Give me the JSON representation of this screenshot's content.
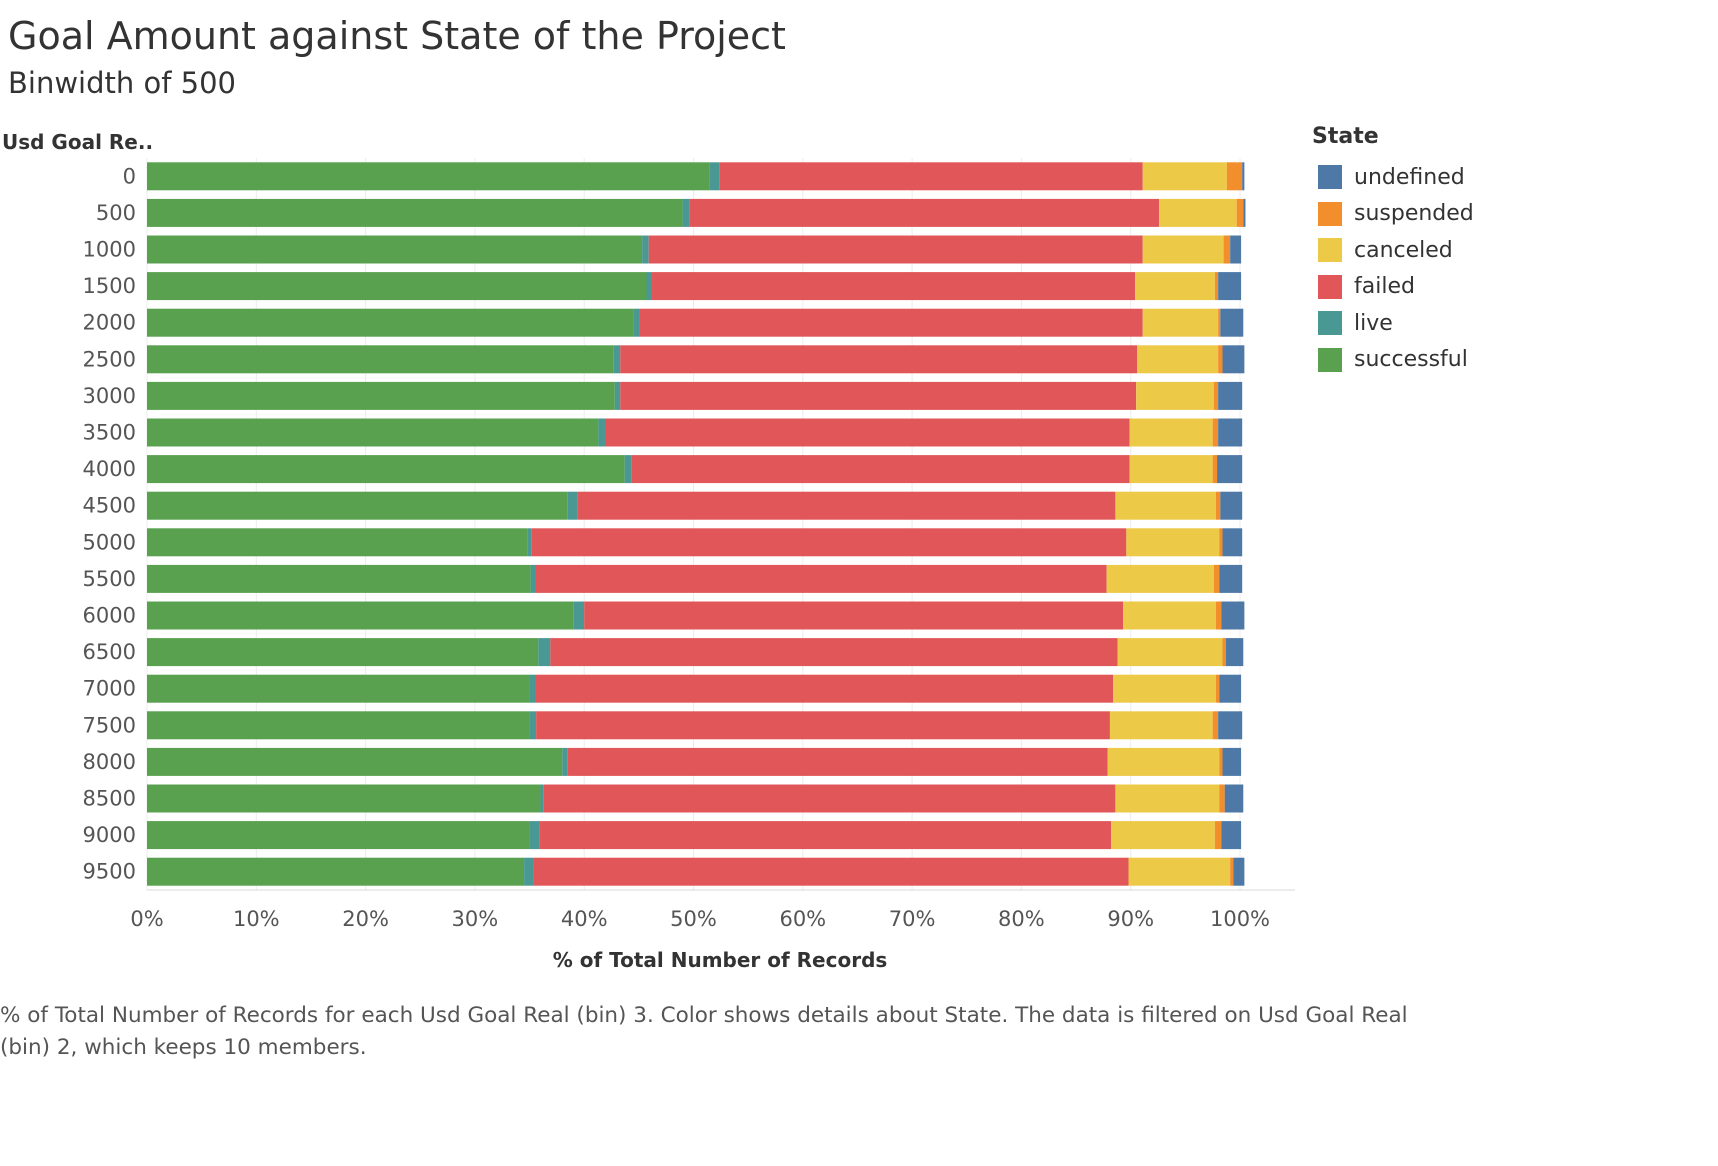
{
  "title": "Goal Amount against State of the Project",
  "subtitle": "Binwidth of 500",
  "caption": "% of Total Number of Records for each Usd Goal Real (bin) 3.  Color shows details about State. The data is filtered on Usd Goal Real (bin) 2, which keeps 10 members.",
  "legend": {
    "title": "State",
    "items": [
      {
        "label": "undefined",
        "color": "#4e79a7"
      },
      {
        "label": "suspended",
        "color": "#f28e2b"
      },
      {
        "label": "canceled",
        "color": "#edc948"
      },
      {
        "label": "failed",
        "color": "#e15759"
      },
      {
        "label": "live",
        "color": "#499894"
      },
      {
        "label": "successful",
        "color": "#59a14f"
      }
    ]
  },
  "chart_data": {
    "type": "bar",
    "orientation": "horizontal",
    "stacked": true,
    "ylabel": "Usd Goal Re..",
    "xlabel": "% of Total Number of Records",
    "xlim": [
      0,
      100
    ],
    "xticks": [
      "0%",
      "10%",
      "20%",
      "30%",
      "40%",
      "50%",
      "60%",
      "70%",
      "80%",
      "90%",
      "100%"
    ],
    "categories": [
      "0",
      "500",
      "1000",
      "1500",
      "2000",
      "2500",
      "3000",
      "3500",
      "4000",
      "4500",
      "5000",
      "5500",
      "6000",
      "6500",
      "7000",
      "7500",
      "8000",
      "8500",
      "9000",
      "9500"
    ],
    "series": [
      {
        "name": "successful",
        "color": "#59a14f",
        "values": [
          51.5,
          49.0,
          45.3,
          45.7,
          44.5,
          42.7,
          42.8,
          41.3,
          43.7,
          38.5,
          34.8,
          35.1,
          39.0,
          35.8,
          35.0,
          35.0,
          38.0,
          36.0,
          35.0,
          34.5
        ]
      },
      {
        "name": "live",
        "color": "#499894",
        "values": [
          0.9,
          0.6,
          0.6,
          0.5,
          0.6,
          0.6,
          0.5,
          0.6,
          0.6,
          0.9,
          0.4,
          0.4,
          1.0,
          1.1,
          0.5,
          0.6,
          0.5,
          0.3,
          0.9,
          0.9
        ]
      },
      {
        "name": "failed",
        "color": "#e15759",
        "values": [
          38.7,
          43.0,
          45.2,
          44.2,
          46.0,
          47.3,
          47.2,
          48.0,
          45.6,
          49.2,
          54.4,
          52.3,
          49.3,
          51.9,
          52.9,
          52.5,
          49.4,
          52.3,
          52.3,
          54.4
        ]
      },
      {
        "name": "canceled",
        "color": "#edc948",
        "values": [
          7.7,
          7.1,
          7.4,
          7.3,
          6.9,
          7.4,
          7.1,
          7.6,
          7.6,
          9.2,
          8.5,
          9.8,
          8.5,
          9.6,
          9.4,
          9.4,
          10.2,
          9.5,
          9.5,
          9.3
        ]
      },
      {
        "name": "suspended",
        "color": "#f28e2b",
        "values": [
          1.4,
          0.6,
          0.6,
          0.3,
          0.2,
          0.4,
          0.4,
          0.5,
          0.4,
          0.4,
          0.3,
          0.5,
          0.5,
          0.3,
          0.3,
          0.5,
          0.3,
          0.5,
          0.6,
          0.3
        ]
      },
      {
        "name": "undefined",
        "color": "#4e79a7",
        "values": [
          0.2,
          0.2,
          1.0,
          2.1,
          2.1,
          2.0,
          2.2,
          2.2,
          2.3,
          2.0,
          1.8,
          2.1,
          2.1,
          1.6,
          2.0,
          2.2,
          1.7,
          1.7,
          1.8,
          1.0
        ]
      }
    ]
  }
}
